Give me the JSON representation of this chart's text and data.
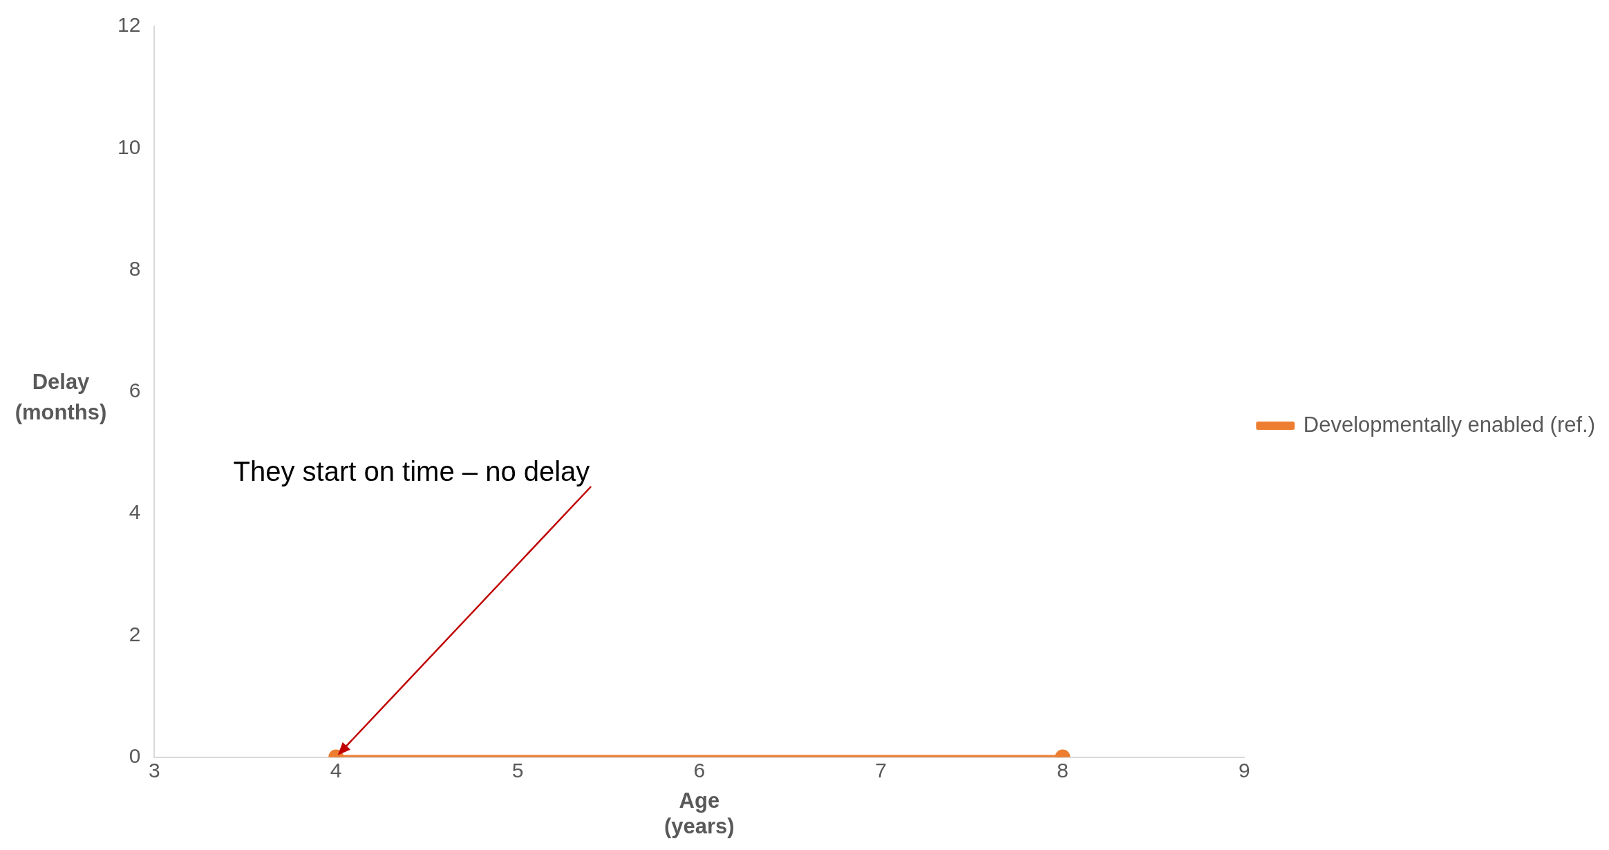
{
  "chart_data": {
    "type": "line",
    "xlabel": "Age (years)",
    "ylabel": "Delay (months)",
    "x": [
      4,
      8
    ],
    "series": [
      {
        "name": "Developmentally enabled (ref.)",
        "color": "#ed7d31",
        "values": [
          0,
          0
        ]
      }
    ],
    "xlim": [
      3,
      9
    ],
    "xticks": [
      3,
      4,
      5,
      6,
      7,
      8,
      9
    ],
    "ylim": [
      0,
      12
    ],
    "yticks": [
      0,
      2,
      4,
      6,
      8,
      10,
      12
    ],
    "grid": false,
    "legend": "right",
    "marker": "circle",
    "line_style": "solid",
    "annotations": [
      "They start on time – no delay"
    ]
  }
}
